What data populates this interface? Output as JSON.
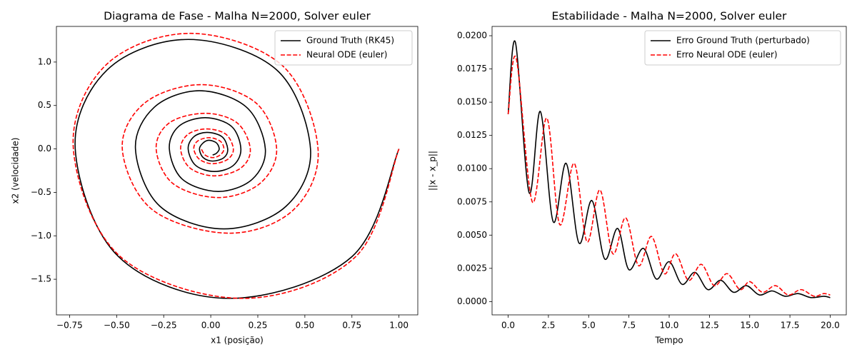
{
  "chart_data": [
    {
      "type": "line",
      "title": "Diagrama de Fase - Malha N=2000, Solver euler",
      "x_label": "x1 (posição)",
      "y_label": "x2 (velocidade)",
      "xlim": [
        -0.82,
        1.1
      ],
      "ylim": [
        -1.91,
        1.41
      ],
      "xticks": [
        {
          "value": -0.75,
          "label": "−0.75"
        },
        {
          "value": -0.5,
          "label": "−0.50"
        },
        {
          "value": -0.25,
          "label": "−0.25"
        },
        {
          "value": 0,
          "label": "0.00"
        },
        0.25,
        {
          "value": 0.5,
          "label": "0.50"
        },
        0.75,
        {
          "value": 1,
          "label": "1.00"
        }
      ],
      "yticks": [
        {
          "value": -1.5,
          "label": "−1.5"
        },
        {
          "value": -1,
          "label": "−1.0"
        },
        {
          "value": -0.5,
          "label": "−0.5"
        },
        {
          "value": 0,
          "label": "0.0"
        },
        0.5,
        {
          "value": 1,
          "label": "1.0"
        }
      ],
      "legend": "upper right",
      "series": [
        {
          "name": "Ground Truth (RK45)",
          "color": "#000000",
          "dash": "solid",
          "x": [
            1,
            0.75,
            0.1,
            -0.49,
            -0.72,
            -0.55,
            -0.12,
            0.35,
            0.53,
            0.4,
            0.07,
            -0.27,
            -0.4,
            -0.3,
            -0.06,
            0.19,
            0.29,
            0.22,
            0.04,
            -0.15,
            -0.22,
            -0.17,
            -0.03,
            0.11,
            0.16,
            0.12,
            0.02,
            -0.08,
            -0.12,
            -0.09,
            -0.02,
            0.06,
            0.09,
            0.07,
            0.01,
            -0.04,
            -0.06,
            -0.04,
            -0.01,
            0.03,
            0.045,
            0.03,
            0.01
          ],
          "values": [
            0,
            -1.24,
            -1.72,
            -1.24,
            0,
            0.91,
            1.26,
            0.91,
            0,
            -0.66,
            -0.92,
            -0.66,
            0,
            0.48,
            0.67,
            0.48,
            0,
            -0.35,
            -0.49,
            -0.35,
            0,
            0.26,
            0.36,
            0.26,
            0,
            -0.19,
            -0.26,
            -0.19,
            0,
            0.14,
            0.19,
            0.14,
            0,
            -0.1,
            -0.14,
            -0.1,
            0,
            0.07,
            0.1,
            0.07,
            0,
            -0.05,
            -0.07
          ]
        },
        {
          "name": "Neural ODE (euler)",
          "color": "#ff0000",
          "dash": "dashed",
          "x": [
            1,
            0.77,
            0.17,
            -0.48,
            -0.73,
            -0.56,
            -0.11,
            0.38,
            0.57,
            0.44,
            0.1,
            -0.31,
            -0.47,
            -0.35,
            -0.05,
            0.24,
            0.35,
            0.26,
            0.04,
            -0.2,
            -0.29,
            -0.22,
            -0.03,
            0.14,
            0.21,
            0.16,
            0.02,
            -0.11,
            -0.16,
            -0.12,
            -0.02,
            0.08,
            0.12,
            0.09,
            0.01,
            -0.06,
            -0.09,
            -0.07,
            -0.01,
            0.05,
            0.07,
            0.05,
            0.01,
            -0.03,
            -0.05
          ],
          "values": [
            0,
            -1.24,
            -1.72,
            -1.24,
            0,
            0.96,
            1.33,
            0.96,
            0,
            -0.7,
            -0.97,
            -0.7,
            0,
            0.53,
            0.74,
            0.53,
            0,
            -0.4,
            -0.56,
            -0.4,
            0,
            0.3,
            0.41,
            0.3,
            0,
            -0.22,
            -0.31,
            -0.22,
            0,
            0.17,
            0.23,
            0.17,
            0,
            -0.12,
            -0.17,
            -0.12,
            0,
            0.09,
            0.13,
            0.09,
            0,
            -0.07,
            -0.1,
            -0.07,
            0
          ]
        }
      ]
    },
    {
      "type": "line",
      "title": "Estabilidade - Malha N=2000, Solver euler",
      "x_label": "Tempo",
      "y_label": "||x - x_p||",
      "xlim": [
        -1,
        21
      ],
      "ylim": [
        -0.001,
        0.0207
      ],
      "xticks": [
        {
          "value": 0,
          "label": "0.0"
        },
        2.5,
        {
          "value": 5,
          "label": "5.0"
        },
        7.5,
        {
          "value": 10,
          "label": "10.0"
        },
        12.5,
        {
          "value": 15,
          "label": "15.0"
        },
        17.5,
        {
          "value": 20,
          "label": "20.0"
        }
      ],
      "yticks": [
        {
          "value": 0,
          "label": "0.0000"
        },
        0.0025,
        {
          "value": 0.005,
          "label": "0.0050"
        },
        0.0075,
        {
          "value": 0.01,
          "label": "0.0100"
        },
        0.0125,
        {
          "value": 0.015,
          "label": "0.0150"
        },
        0.0175,
        {
          "value": 0.02,
          "label": "0.0200"
        }
      ],
      "legend": "upper right",
      "series": [
        {
          "name": "Erro Ground Truth (perturbado)",
          "color": "#000000",
          "dash": "solid",
          "x": [
            0,
            0.45,
            1.3,
            2.0,
            2.8,
            3.6,
            4.4,
            5.2,
            6.0,
            6.8,
            7.5,
            8.4,
            9.2,
            10.0,
            10.8,
            11.6,
            12.4,
            13.2,
            14.0,
            14.8,
            15.6,
            16.4,
            17.2,
            18.0,
            18.8,
            19.6,
            20.0
          ],
          "values": [
            0.0141,
            0.0195,
            0.0082,
            0.0143,
            0.006,
            0.0104,
            0.0044,
            0.0076,
            0.0032,
            0.0055,
            0.0024,
            0.004,
            0.0017,
            0.003,
            0.0013,
            0.0022,
            0.0009,
            0.0016,
            0.0007,
            0.0012,
            0.0005,
            0.0008,
            0.0004,
            0.0006,
            0.0003,
            0.0004,
            0.0003
          ]
        },
        {
          "name": "Erro Neural ODE (euler)",
          "color": "#ff0000",
          "dash": "dashed",
          "x": [
            0,
            0.5,
            1.5,
            2.4,
            3.2,
            4.1,
            4.9,
            5.7,
            6.5,
            7.3,
            8.1,
            8.9,
            9.7,
            10.4,
            11.2,
            12.0,
            12.8,
            13.6,
            14.4,
            15.0,
            15.8,
            16.6,
            17.4,
            18.2,
            19.0,
            19.6,
            20.0
          ],
          "values": [
            0.0141,
            0.0183,
            0.0075,
            0.0138,
            0.0058,
            0.0104,
            0.0045,
            0.0084,
            0.0036,
            0.0063,
            0.0027,
            0.0049,
            0.0021,
            0.0036,
            0.0016,
            0.0028,
            0.0012,
            0.0021,
            0.0009,
            0.0015,
            0.0007,
            0.0012,
            0.0005,
            0.0009,
            0.0004,
            0.0006,
            0.0005
          ]
        }
      ]
    }
  ]
}
